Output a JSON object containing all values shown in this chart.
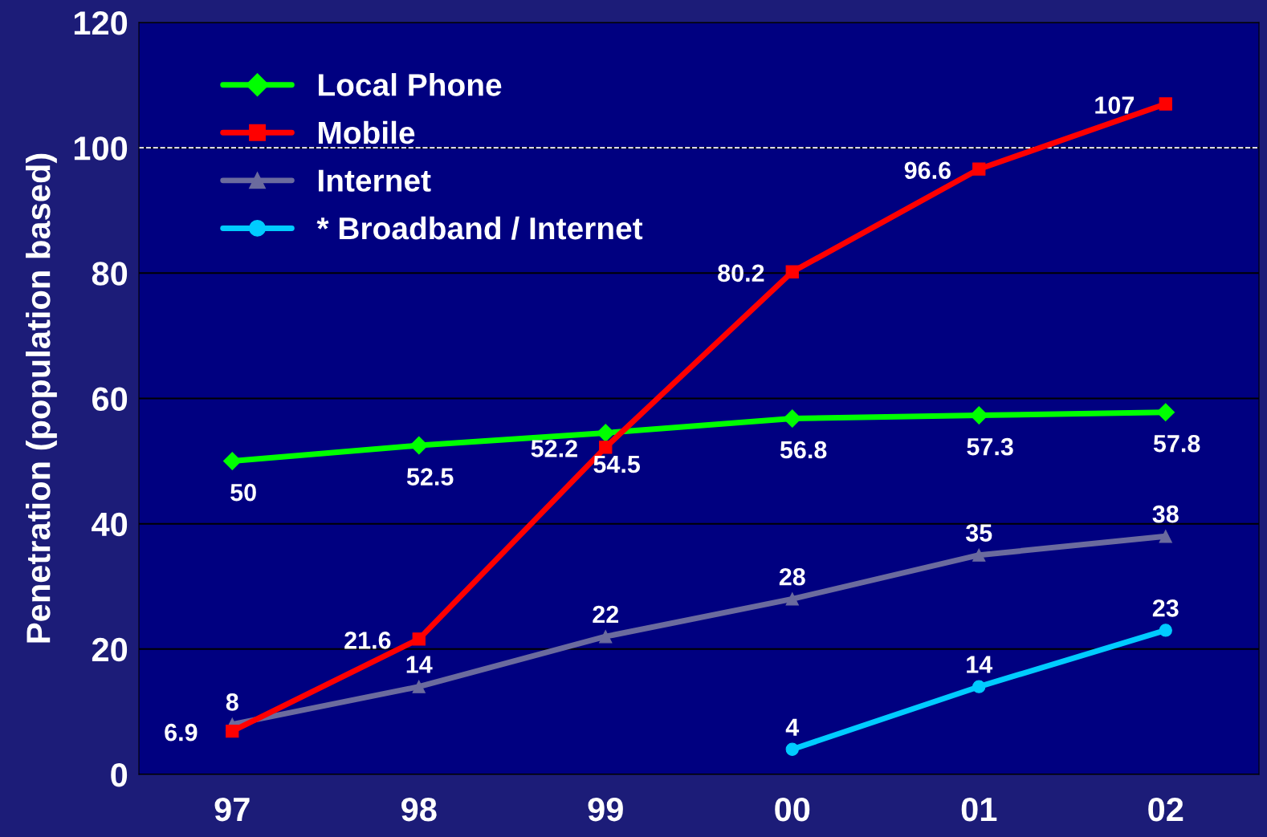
{
  "chart_data": {
    "type": "line",
    "ylabel": "Penetration (population based)",
    "categories": [
      "97",
      "98",
      "99",
      "00",
      "01",
      "02"
    ],
    "series": [
      {
        "name": "Local Phone",
        "color": "#00ff00",
        "marker": "diamond",
        "values": [
          50,
          52.5,
          54.5,
          56.8,
          57.3,
          57.8
        ]
      },
      {
        "name": "Mobile",
        "color": "#ff0000",
        "marker": "square",
        "values": [
          6.9,
          21.6,
          52.2,
          80.2,
          96.6,
          107
        ]
      },
      {
        "name": "Internet",
        "color": "#6b6b9e",
        "marker": "triangle",
        "values": [
          8,
          14,
          22,
          28,
          35,
          38
        ]
      },
      {
        "name": "* Broadband / Internet",
        "color": "#00ccff",
        "marker": "circle",
        "values": [
          null,
          null,
          null,
          4,
          14,
          23
        ]
      }
    ],
    "ylim": [
      0,
      120
    ],
    "yticks": [
      0,
      20,
      40,
      60,
      80,
      100,
      120
    ],
    "grid": "y",
    "legend": "top left",
    "data_labels": true,
    "line_style": "solid",
    "ref_lines": [
      {
        "axis": "y",
        "value": 100,
        "color": "#ffffff",
        "line_style": "dashed"
      }
    ]
  }
}
